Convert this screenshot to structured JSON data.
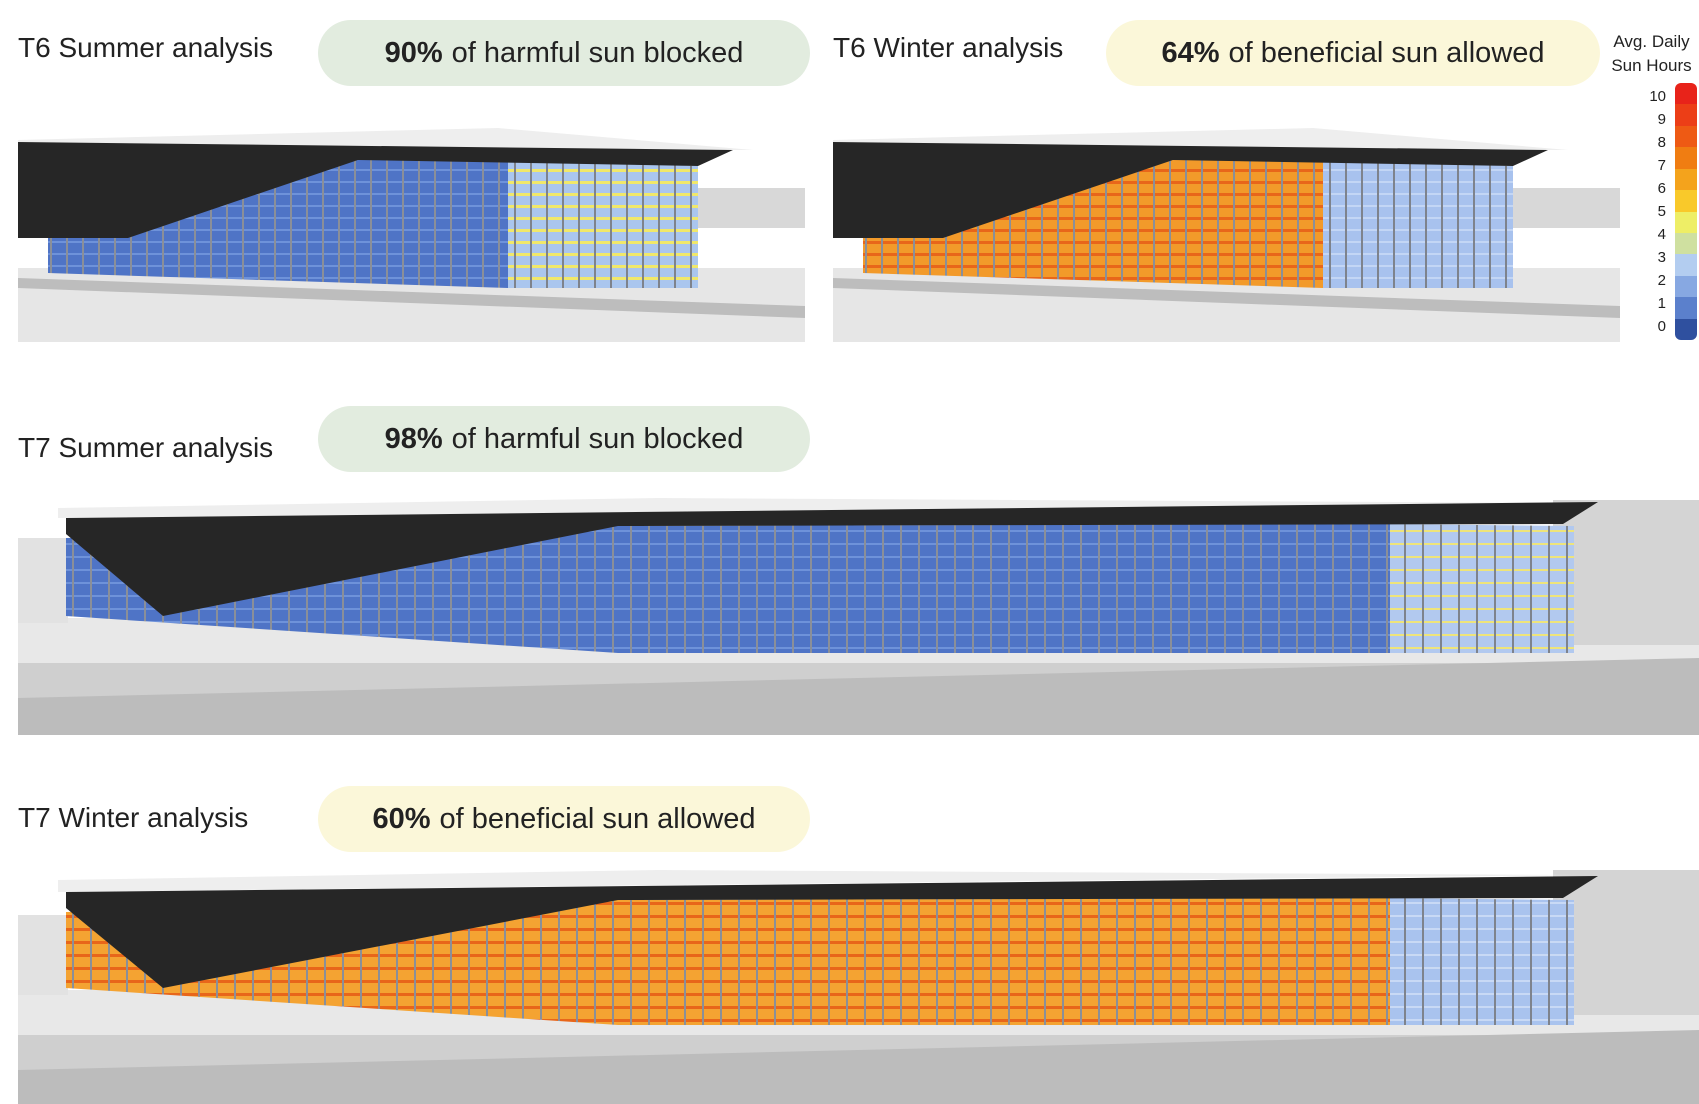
{
  "panels": {
    "t6_summer": {
      "title": "T6 Summer analysis",
      "stat_value": "90%",
      "stat_text": "of harmful sun blocked"
    },
    "t6_winter": {
      "title": "T6 Winter analysis",
      "stat_value": "64%",
      "stat_text": "of beneficial sun allowed"
    },
    "t7_summer": {
      "title": "T7 Summer analysis",
      "stat_value": "98%",
      "stat_text": "of harmful sun blocked"
    },
    "t7_winter": {
      "title": "T7 Winter analysis",
      "stat_value": "60%",
      "stat_text": "of beneficial sun allowed"
    }
  },
  "legend": {
    "title_line1": "Avg. Daily",
    "title_line2": "Sun Hours",
    "ticks": [
      "10",
      "9",
      "8",
      "7",
      "6",
      "5",
      "4",
      "3",
      "2",
      "1",
      "0"
    ],
    "colors": [
      "#e8231a",
      "#ec3e17",
      "#ee5a14",
      "#f07d12",
      "#f4a31c",
      "#f9c92a",
      "#eeee66",
      "#cfe0a0",
      "#b3cdf0",
      "#87a8e2",
      "#5b80cc",
      "#2f509f"
    ]
  },
  "colors": {
    "summer_pill": "#e2ecdf",
    "winter_pill": "#fbf7d9",
    "roof": "#262626",
    "ground": "#e6e6e6"
  }
}
